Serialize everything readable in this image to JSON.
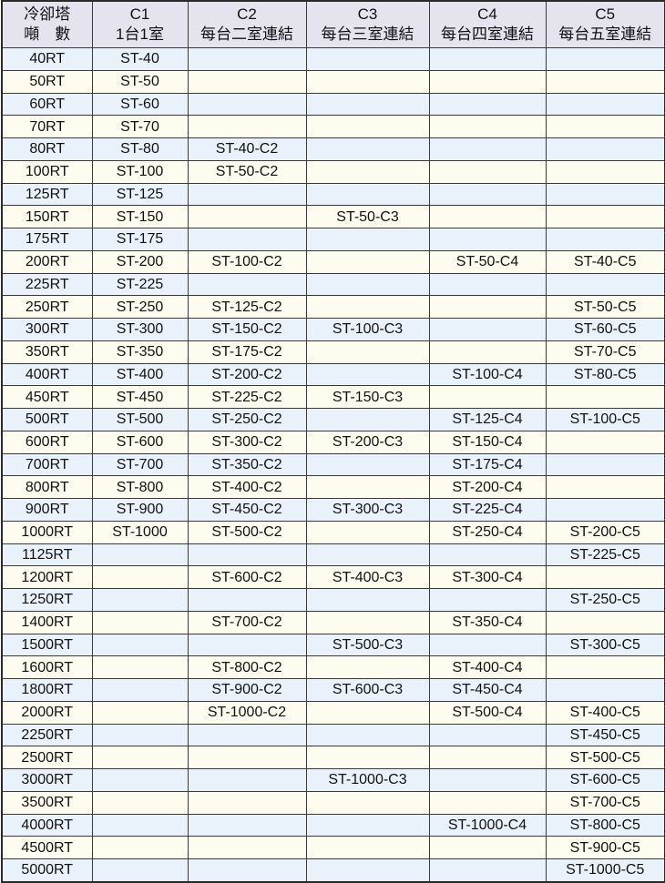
{
  "headers": [
    {
      "line1": "冷卻塔",
      "line2": "噸　數"
    },
    {
      "line1": "C1",
      "line2": "1台1室"
    },
    {
      "line1": "C2",
      "line2": "每台二室連結"
    },
    {
      "line1": "C3",
      "line2": "每台三室連結"
    },
    {
      "line1": "C4",
      "line2": "每台四室連結"
    },
    {
      "line1": "C5",
      "line2": "每台五室連結"
    }
  ],
  "colors": {
    "header_bg": "#e4e3ee",
    "row_blue": "#e9f2fb",
    "row_cream": "#fefcee",
    "border": "#3a3a3a"
  },
  "rows": [
    [
      "40RT",
      "ST-40",
      "",
      "",
      "",
      ""
    ],
    [
      "50RT",
      "ST-50",
      "",
      "",
      "",
      ""
    ],
    [
      "60RT",
      "ST-60",
      "",
      "",
      "",
      ""
    ],
    [
      "70RT",
      "ST-70",
      "",
      "",
      "",
      ""
    ],
    [
      "80RT",
      "ST-80",
      "ST-40-C2",
      "",
      "",
      ""
    ],
    [
      "100RT",
      "ST-100",
      "ST-50-C2",
      "",
      "",
      ""
    ],
    [
      "125RT",
      "ST-125",
      "",
      "",
      "",
      ""
    ],
    [
      "150RT",
      "ST-150",
      "",
      "ST-50-C3",
      "",
      ""
    ],
    [
      "175RT",
      "ST-175",
      "",
      "",
      "",
      ""
    ],
    [
      "200RT",
      "ST-200",
      "ST-100-C2",
      "",
      "ST-50-C4",
      "ST-40-C5"
    ],
    [
      "225RT",
      "ST-225",
      "",
      "",
      "",
      ""
    ],
    [
      "250RT",
      "ST-250",
      "ST-125-C2",
      "",
      "",
      "ST-50-C5"
    ],
    [
      "300RT",
      "ST-300",
      "ST-150-C2",
      "ST-100-C3",
      "",
      "ST-60-C5"
    ],
    [
      "350RT",
      "ST-350",
      "ST-175-C2",
      "",
      "",
      "ST-70-C5"
    ],
    [
      "400RT",
      "ST-400",
      "ST-200-C2",
      "",
      "ST-100-C4",
      "ST-80-C5"
    ],
    [
      "450RT",
      "ST-450",
      "ST-225-C2",
      "ST-150-C3",
      "",
      ""
    ],
    [
      "500RT",
      "ST-500",
      "ST-250-C2",
      "",
      "ST-125-C4",
      "ST-100-C5"
    ],
    [
      "600RT",
      "ST-600",
      "ST-300-C2",
      "ST-200-C3",
      "ST-150-C4",
      ""
    ],
    [
      "700RT",
      "ST-700",
      "ST-350-C2",
      "",
      "ST-175-C4",
      ""
    ],
    [
      "800RT",
      "ST-800",
      "ST-400-C2",
      "",
      "ST-200-C4",
      ""
    ],
    [
      "900RT",
      "ST-900",
      "ST-450-C2",
      "ST-300-C3",
      "ST-225-C4",
      ""
    ],
    [
      "1000RT",
      "ST-1000",
      "ST-500-C2",
      "",
      "ST-250-C4",
      "ST-200-C5"
    ],
    [
      "1125RT",
      "",
      "",
      "",
      "",
      "ST-225-C5"
    ],
    [
      "1200RT",
      "",
      "ST-600-C2",
      "ST-400-C3",
      "ST-300-C4",
      ""
    ],
    [
      "1250RT",
      "",
      "",
      "",
      "",
      "ST-250-C5"
    ],
    [
      "1400RT",
      "",
      "ST-700-C2",
      "",
      "ST-350-C4",
      ""
    ],
    [
      "1500RT",
      "",
      "",
      "ST-500-C3",
      "",
      "ST-300-C5"
    ],
    [
      "1600RT",
      "",
      "ST-800-C2",
      "",
      "ST-400-C4",
      ""
    ],
    [
      "1800RT",
      "",
      "ST-900-C2",
      "ST-600-C3",
      "ST-450-C4",
      ""
    ],
    [
      "2000RT",
      "",
      "ST-1000-C2",
      "",
      "ST-500-C4",
      "ST-400-C5"
    ],
    [
      "2250RT",
      "",
      "",
      "",
      "",
      "ST-450-C5"
    ],
    [
      "2500RT",
      "",
      "",
      "",
      "",
      "ST-500-C5"
    ],
    [
      "3000RT",
      "",
      "",
      "ST-1000-C3",
      "",
      "ST-600-C5"
    ],
    [
      "3500RT",
      "",
      "",
      "",
      "",
      "ST-700-C5"
    ],
    [
      "4000RT",
      "",
      "",
      "",
      "ST-1000-C4",
      "ST-800-C5"
    ],
    [
      "4500RT",
      "",
      "",
      "",
      "",
      "ST-900-C5"
    ],
    [
      "5000RT",
      "",
      "",
      "",
      "",
      "ST-1000-C5"
    ]
  ]
}
